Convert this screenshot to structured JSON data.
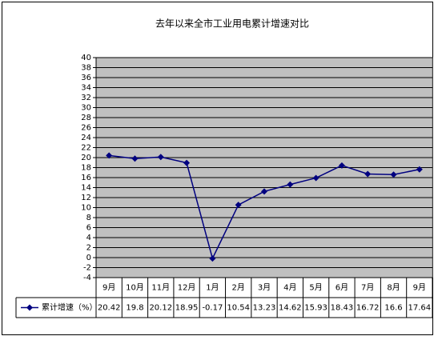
{
  "chart_data": {
    "type": "line",
    "title": "去年以来全市工业用电累计增速对比",
    "categories": [
      "9月",
      "10月",
      "11月",
      "12月",
      "1月",
      "2月",
      "3月",
      "4月",
      "5月",
      "6月",
      "7月",
      "8月",
      "9月"
    ],
    "series": [
      {
        "name": "累计增速（%）",
        "color": "#000080",
        "values": [
          20.42,
          19.8,
          20.12,
          18.95,
          -0.17,
          10.54,
          13.23,
          14.62,
          15.93,
          18.43,
          16.72,
          16.6,
          17.64
        ]
      }
    ],
    "ylim": [
      -4,
      40
    ],
    "yticks": [
      -4,
      -2,
      0,
      2,
      4,
      6,
      8,
      10,
      12,
      14,
      16,
      18,
      20,
      22,
      24,
      26,
      28,
      30,
      32,
      34,
      36,
      38,
      40
    ],
    "grid": true,
    "data_table": true
  }
}
